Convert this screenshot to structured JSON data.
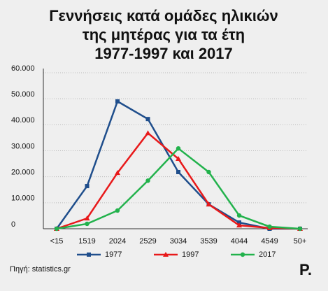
{
  "chart_data": {
    "type": "line",
    "title": [
      "Γεννήσεις κατά ομάδες ηλικιών",
      "της μητέρας για τα έτη",
      "1977-1997 και 2017"
    ],
    "categories": [
      "<15",
      "1519",
      "2024",
      "2529",
      "3034",
      "3539",
      "4044",
      "4549",
      "50+"
    ],
    "series": [
      {
        "name": "1977",
        "color": "#1f4e8c",
        "marker": "square",
        "values": [
          0,
          16400,
          49000,
          42200,
          21800,
          9400,
          2400,
          0,
          0
        ]
      },
      {
        "name": "1997",
        "color": "#e8191a",
        "marker": "triangle",
        "values": [
          0,
          4000,
          21500,
          36800,
          26900,
          9400,
          1300,
          300,
          0
        ]
      },
      {
        "name": "2017",
        "color": "#22b24c",
        "marker": "circle",
        "values": [
          0,
          1900,
          7000,
          18500,
          30900,
          21800,
          5100,
          800,
          0
        ]
      }
    ],
    "ylim": [
      0,
      60000
    ],
    "yticks": [
      0,
      {
        "value": 10000,
        "label": "10.000"
      },
      {
        "value": 20000,
        "label": "20.000"
      },
      {
        "value": 30000,
        "label": "30.000"
      },
      {
        "value": 40000,
        "label": "40.000"
      },
      {
        "value": 50000,
        "label": "50.000"
      },
      {
        "value": 60000,
        "label": "60.000"
      }
    ],
    "grid": true,
    "source": "Πηγή: statistics.gr",
    "logo": "P."
  }
}
